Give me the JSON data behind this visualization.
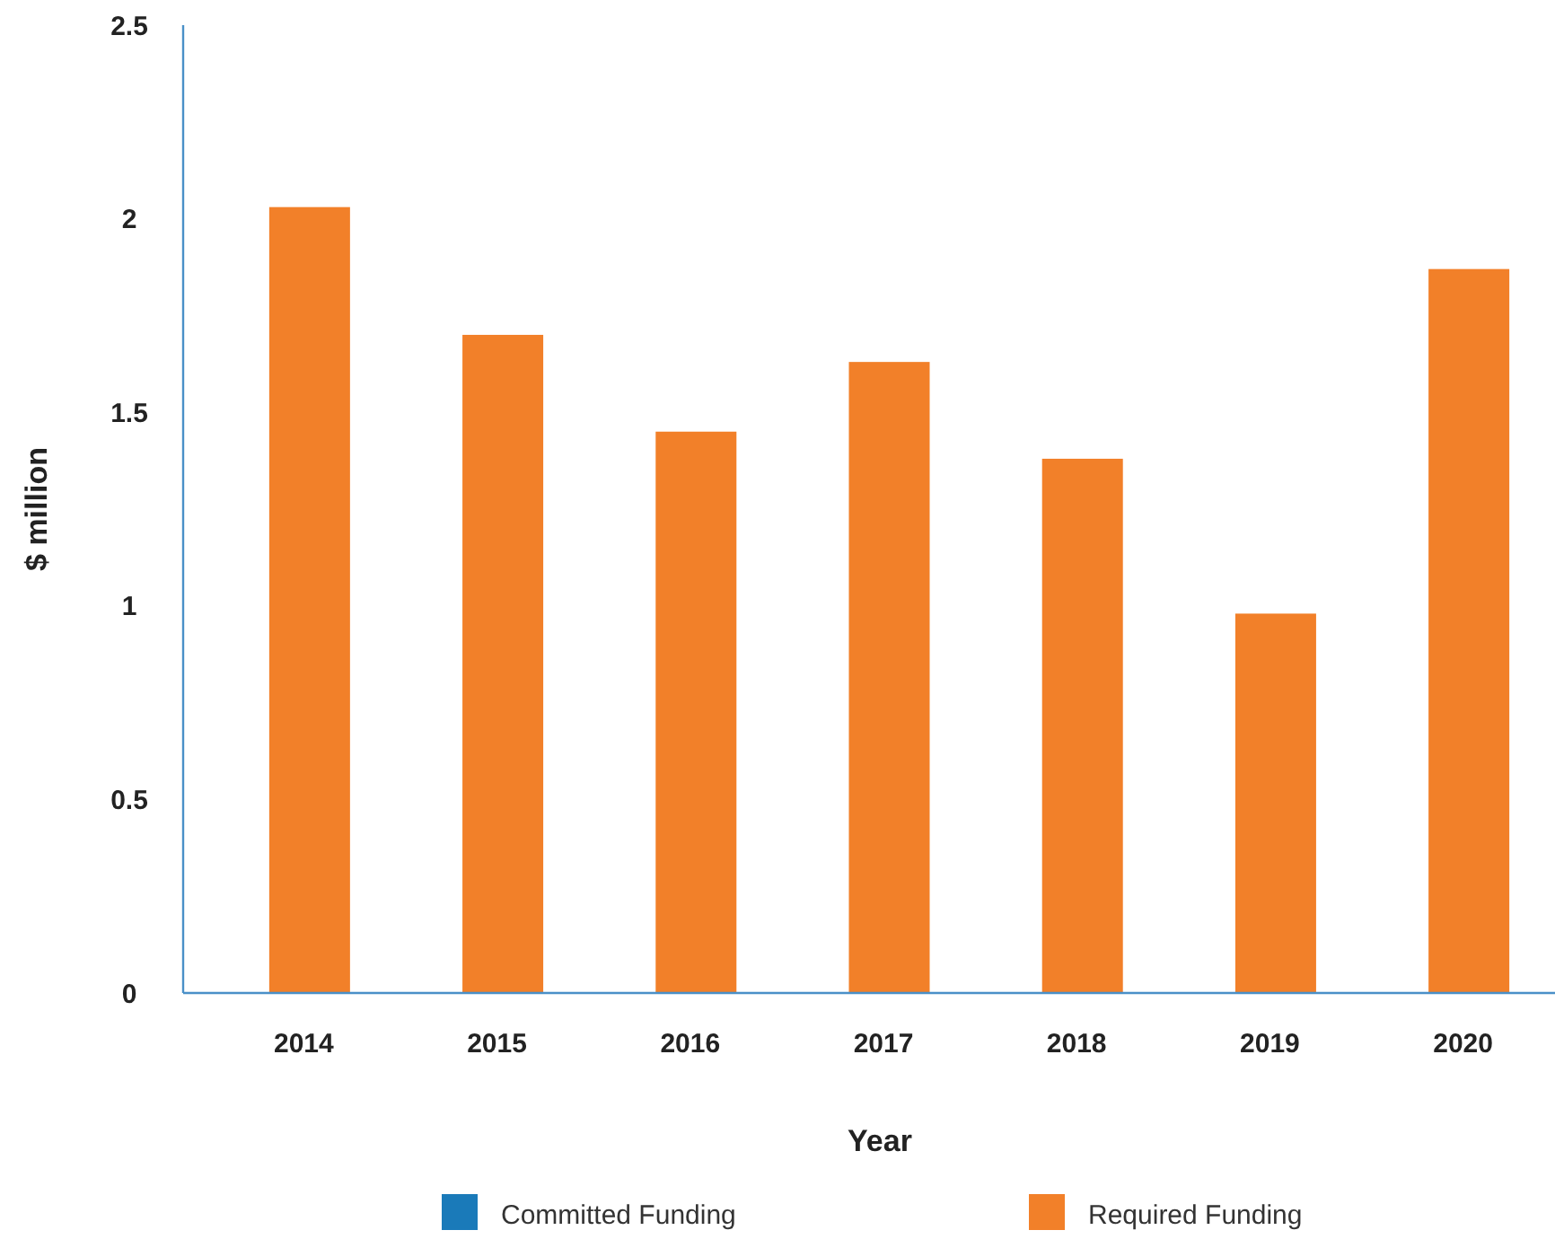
{
  "chart_data": {
    "type": "bar",
    "xlabel": "Year",
    "ylabel": "$ million",
    "categories": [
      "2014",
      "2015",
      "2016",
      "2017",
      "2018",
      "2019",
      "2020"
    ],
    "series": [
      {
        "name": "Committed Funding",
        "color": "#1a7ab9",
        "values": [
          null,
          null,
          null,
          null,
          null,
          null,
          null
        ]
      },
      {
        "name": "Required Funding",
        "color": "#f28029",
        "values": [
          2.03,
          1.7,
          1.45,
          1.63,
          1.38,
          0.98,
          1.87
        ]
      }
    ],
    "ylim": [
      0,
      2.5
    ],
    "yticks": [
      0,
      0.5,
      1,
      1.5,
      2,
      2.5
    ],
    "grid": false,
    "legend": "bottom"
  }
}
